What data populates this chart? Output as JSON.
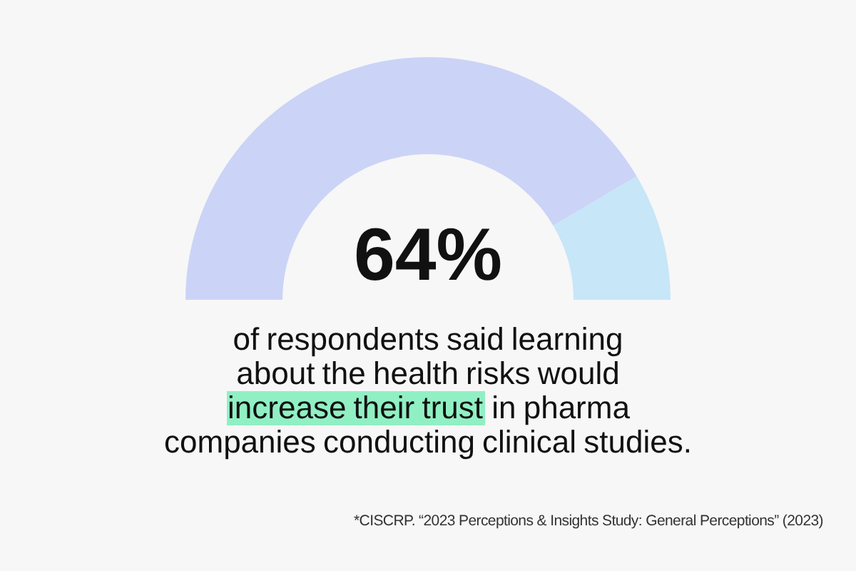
{
  "chart_data": {
    "type": "donut",
    "title": "64%",
    "categories": [
      null,
      null
    ],
    "values": [
      83,
      17
    ],
    "colors": [
      "#cbd4f7",
      "#c7e6f8"
    ],
    "annotations": [
      "of respondents said learning\nabout the health risks would",
      "increase their trust",
      "in pharma\ncompanies conducting clinical studies.",
      "*CISCRP. “2023 Perceptions & Insights Study: General Perceptions” (2023)"
    ]
  }
}
